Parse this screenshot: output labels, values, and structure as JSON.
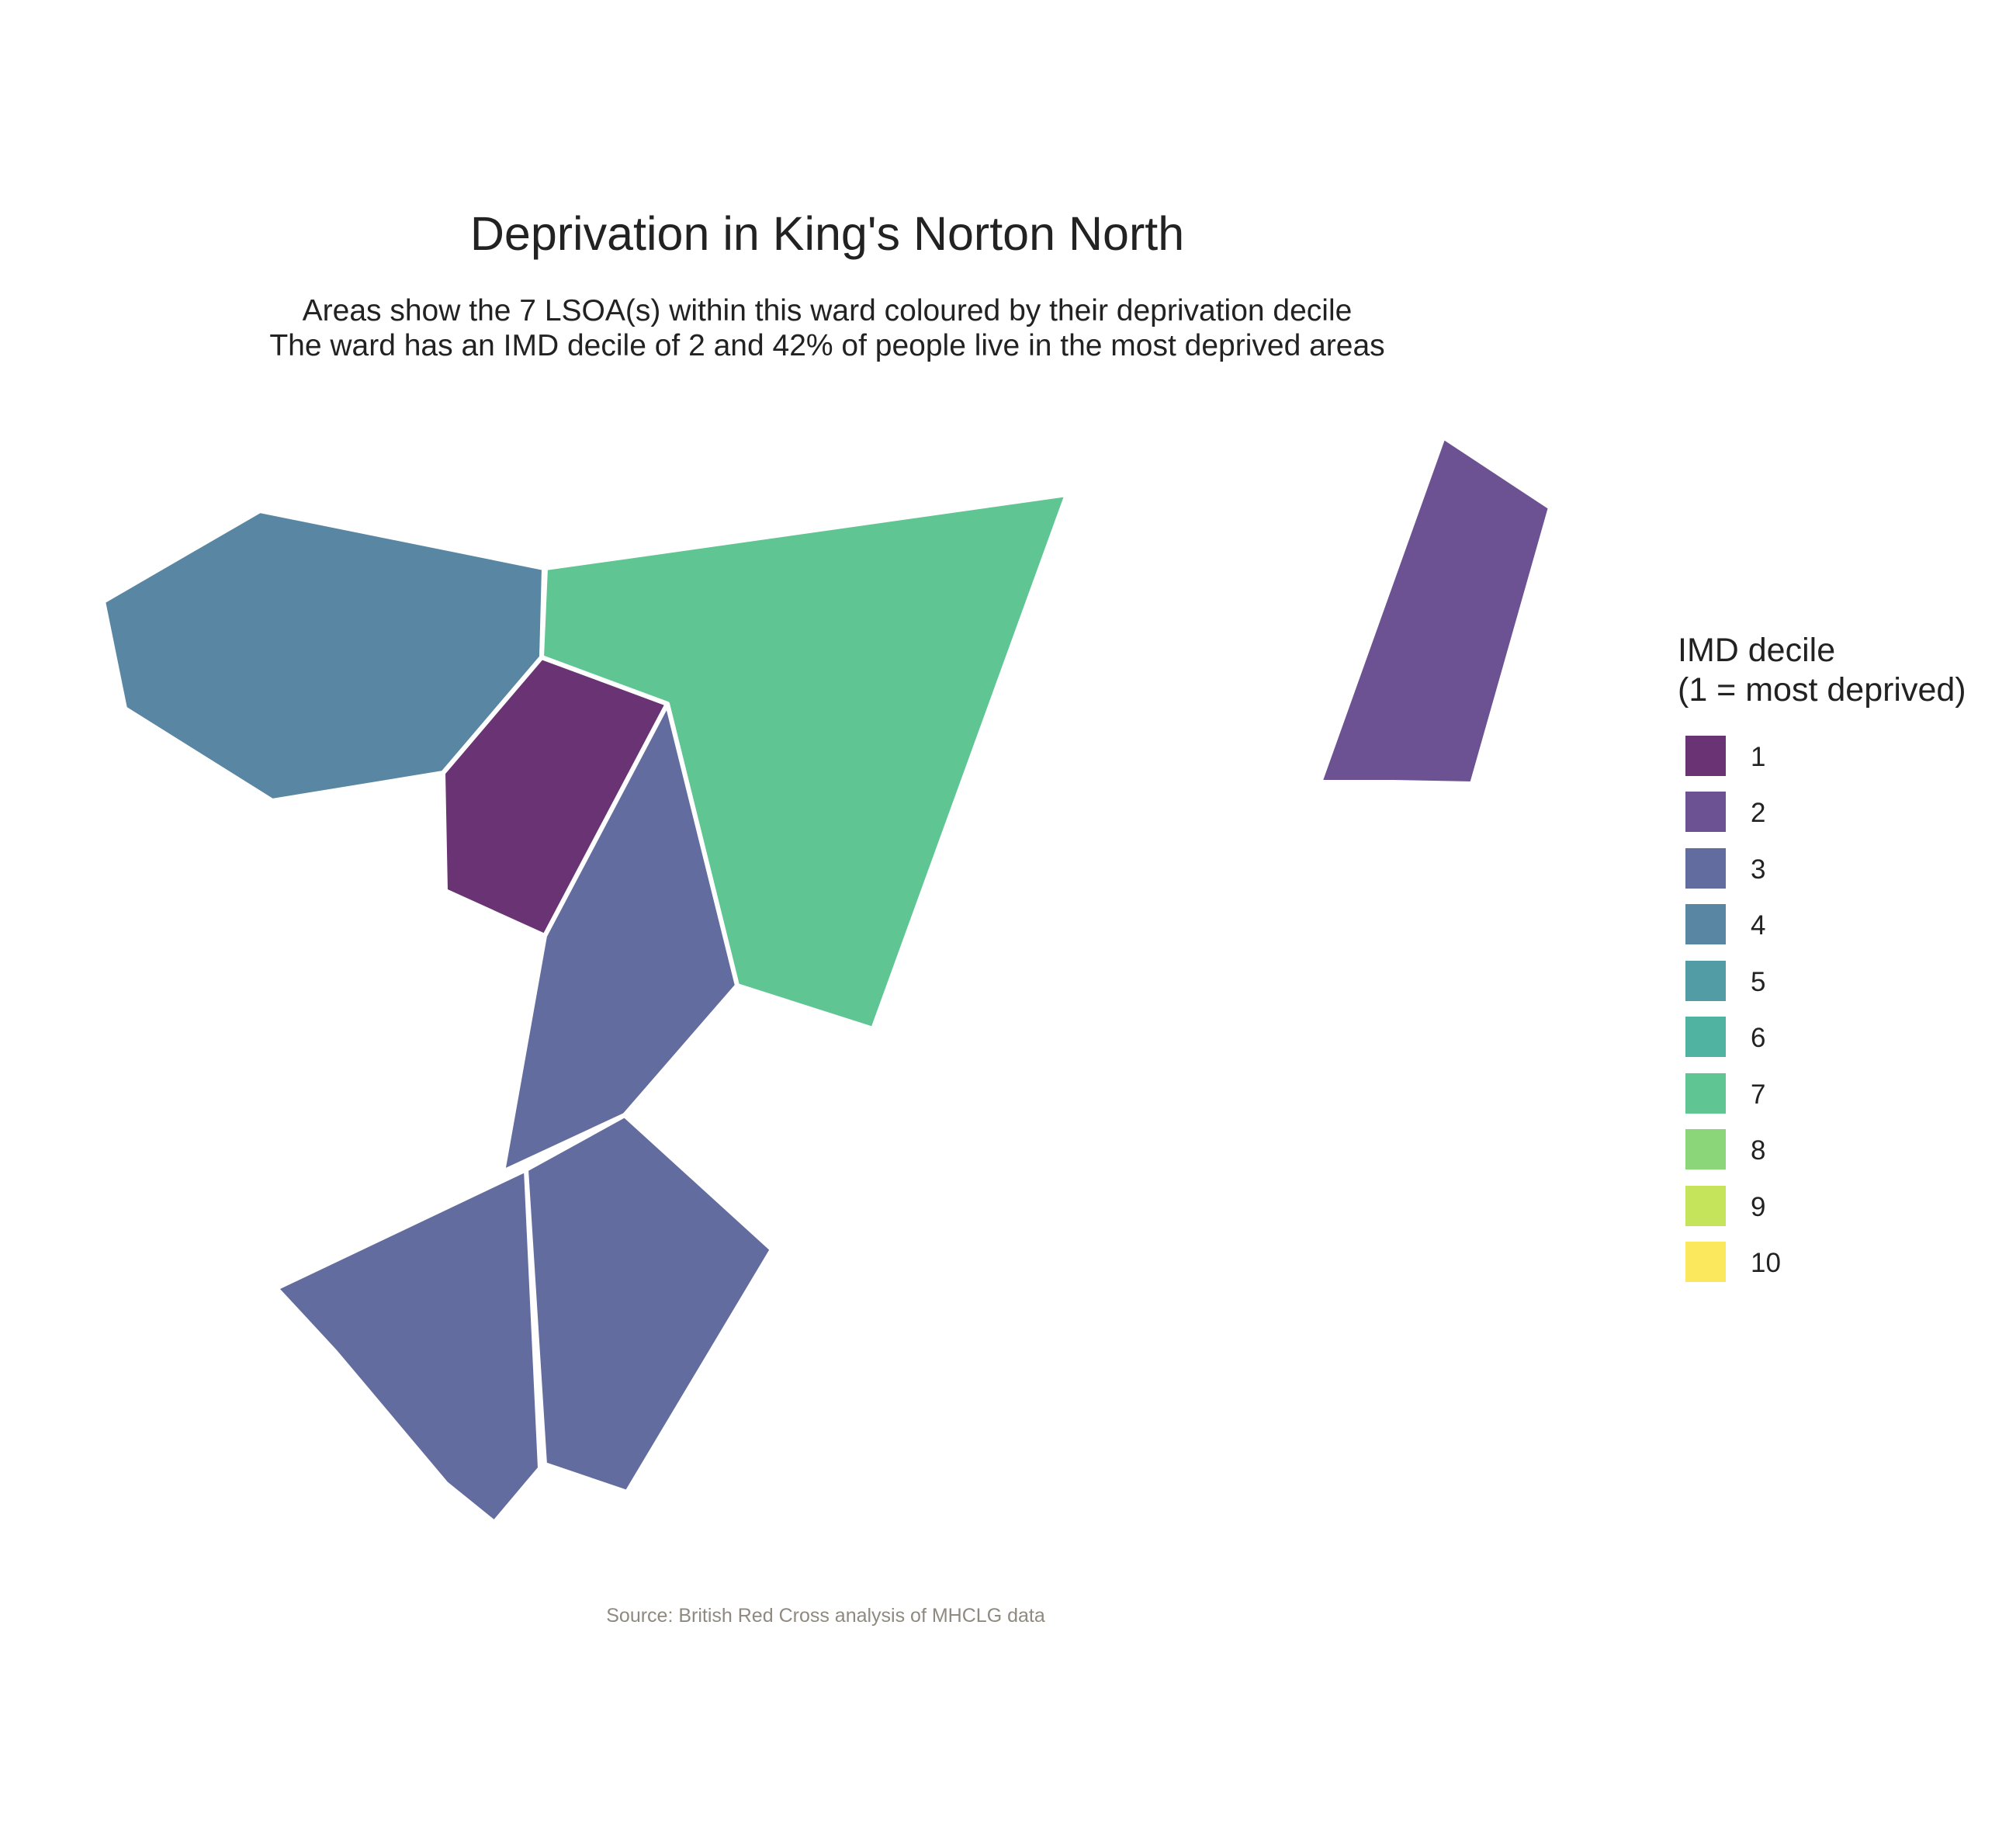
{
  "title": "Deprivation in King's Norton North",
  "subtitle_lines": [
    "Areas show the 7 LSOA(s) within this ward coloured by their deprivation decile",
    "The ward has an IMD decile of 2 and 42% of people live in the most deprived areas"
  ],
  "caption": "Source: British Red Cross analysis of MHCLG data",
  "legend": {
    "title_lines": [
      "IMD decile",
      "(1 = most deprived)"
    ],
    "items": [
      {
        "label": "1",
        "color": "#6a3474"
      },
      {
        "label": "2",
        "color": "#6d5293"
      },
      {
        "label": "3",
        "color": "#636c9e"
      },
      {
        "label": "4",
        "color": "#5886a3"
      },
      {
        "label": "5",
        "color": "#529ca6"
      },
      {
        "label": "6",
        "color": "#50b3a2"
      },
      {
        "label": "7",
        "color": "#5fc592"
      },
      {
        "label": "8",
        "color": "#8cd67a"
      },
      {
        "label": "9",
        "color": "#c6e35c"
      },
      {
        "label": "10",
        "color": "#fbe85c"
      }
    ]
  },
  "areas": [
    {
      "decile": 4,
      "color": "#5886a3"
    },
    {
      "decile": 7,
      "color": "#5fc592"
    },
    {
      "decile": 1,
      "color": "#6a3474"
    },
    {
      "decile": 3,
      "color": "#636c9e"
    },
    {
      "decile": 3,
      "color": "#636c9e"
    },
    {
      "decile": 3,
      "color": "#636c9e"
    },
    {
      "decile": 2,
      "color": "#6d5293"
    }
  ]
}
